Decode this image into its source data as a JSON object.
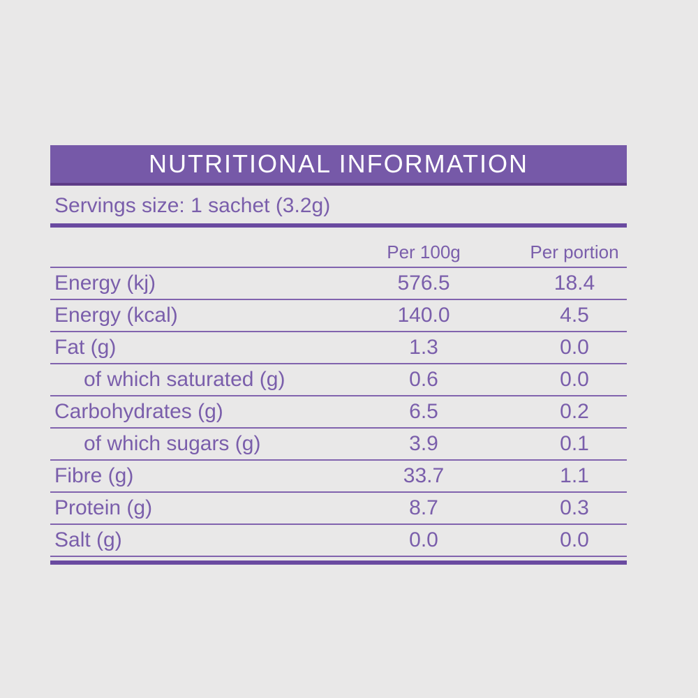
{
  "banner": {
    "title": "NUTRITIONAL INFORMATION"
  },
  "servings": {
    "text": "Servings size: 1 sachet (3.2g)"
  },
  "table": {
    "headers": {
      "per_100g": "Per 100g",
      "per_portion": "Per portion"
    },
    "rows": [
      {
        "label": "Energy (kj)",
        "per_100g": "576.5",
        "per_portion": "18.4",
        "indent": false
      },
      {
        "label": "Energy (kcal)",
        "per_100g": "140.0",
        "per_portion": "4.5",
        "indent": false
      },
      {
        "label": "Fat (g)",
        "per_100g": "1.3",
        "per_portion": "0.0",
        "indent": false
      },
      {
        "label": "of which saturated (g)",
        "per_100g": "0.6",
        "per_portion": "0.0",
        "indent": true
      },
      {
        "label": "Carbohydrates (g)",
        "per_100g": "6.5",
        "per_portion": "0.2",
        "indent": false
      },
      {
        "label": "of which sugars (g)",
        "per_100g": "3.9",
        "per_portion": "0.1",
        "indent": true
      },
      {
        "label": "Fibre (g)",
        "per_100g": "33.7",
        "per_portion": "1.1",
        "indent": false
      },
      {
        "label": "Protein (g)",
        "per_100g": "8.7",
        "per_portion": "0.3",
        "indent": false
      },
      {
        "label": "Salt (g)",
        "per_100g": "0.0",
        "per_portion": "0.0",
        "indent": false
      }
    ]
  },
  "colors": {
    "background": "#e9e8e8",
    "banner_fill": "#7659a8",
    "banner_border": "#5e3c87",
    "text_purple": "#7a5eab",
    "thin_rule": "#8163ae",
    "thick_rule": "#6a4aa0",
    "banner_text": "#ffffff"
  }
}
